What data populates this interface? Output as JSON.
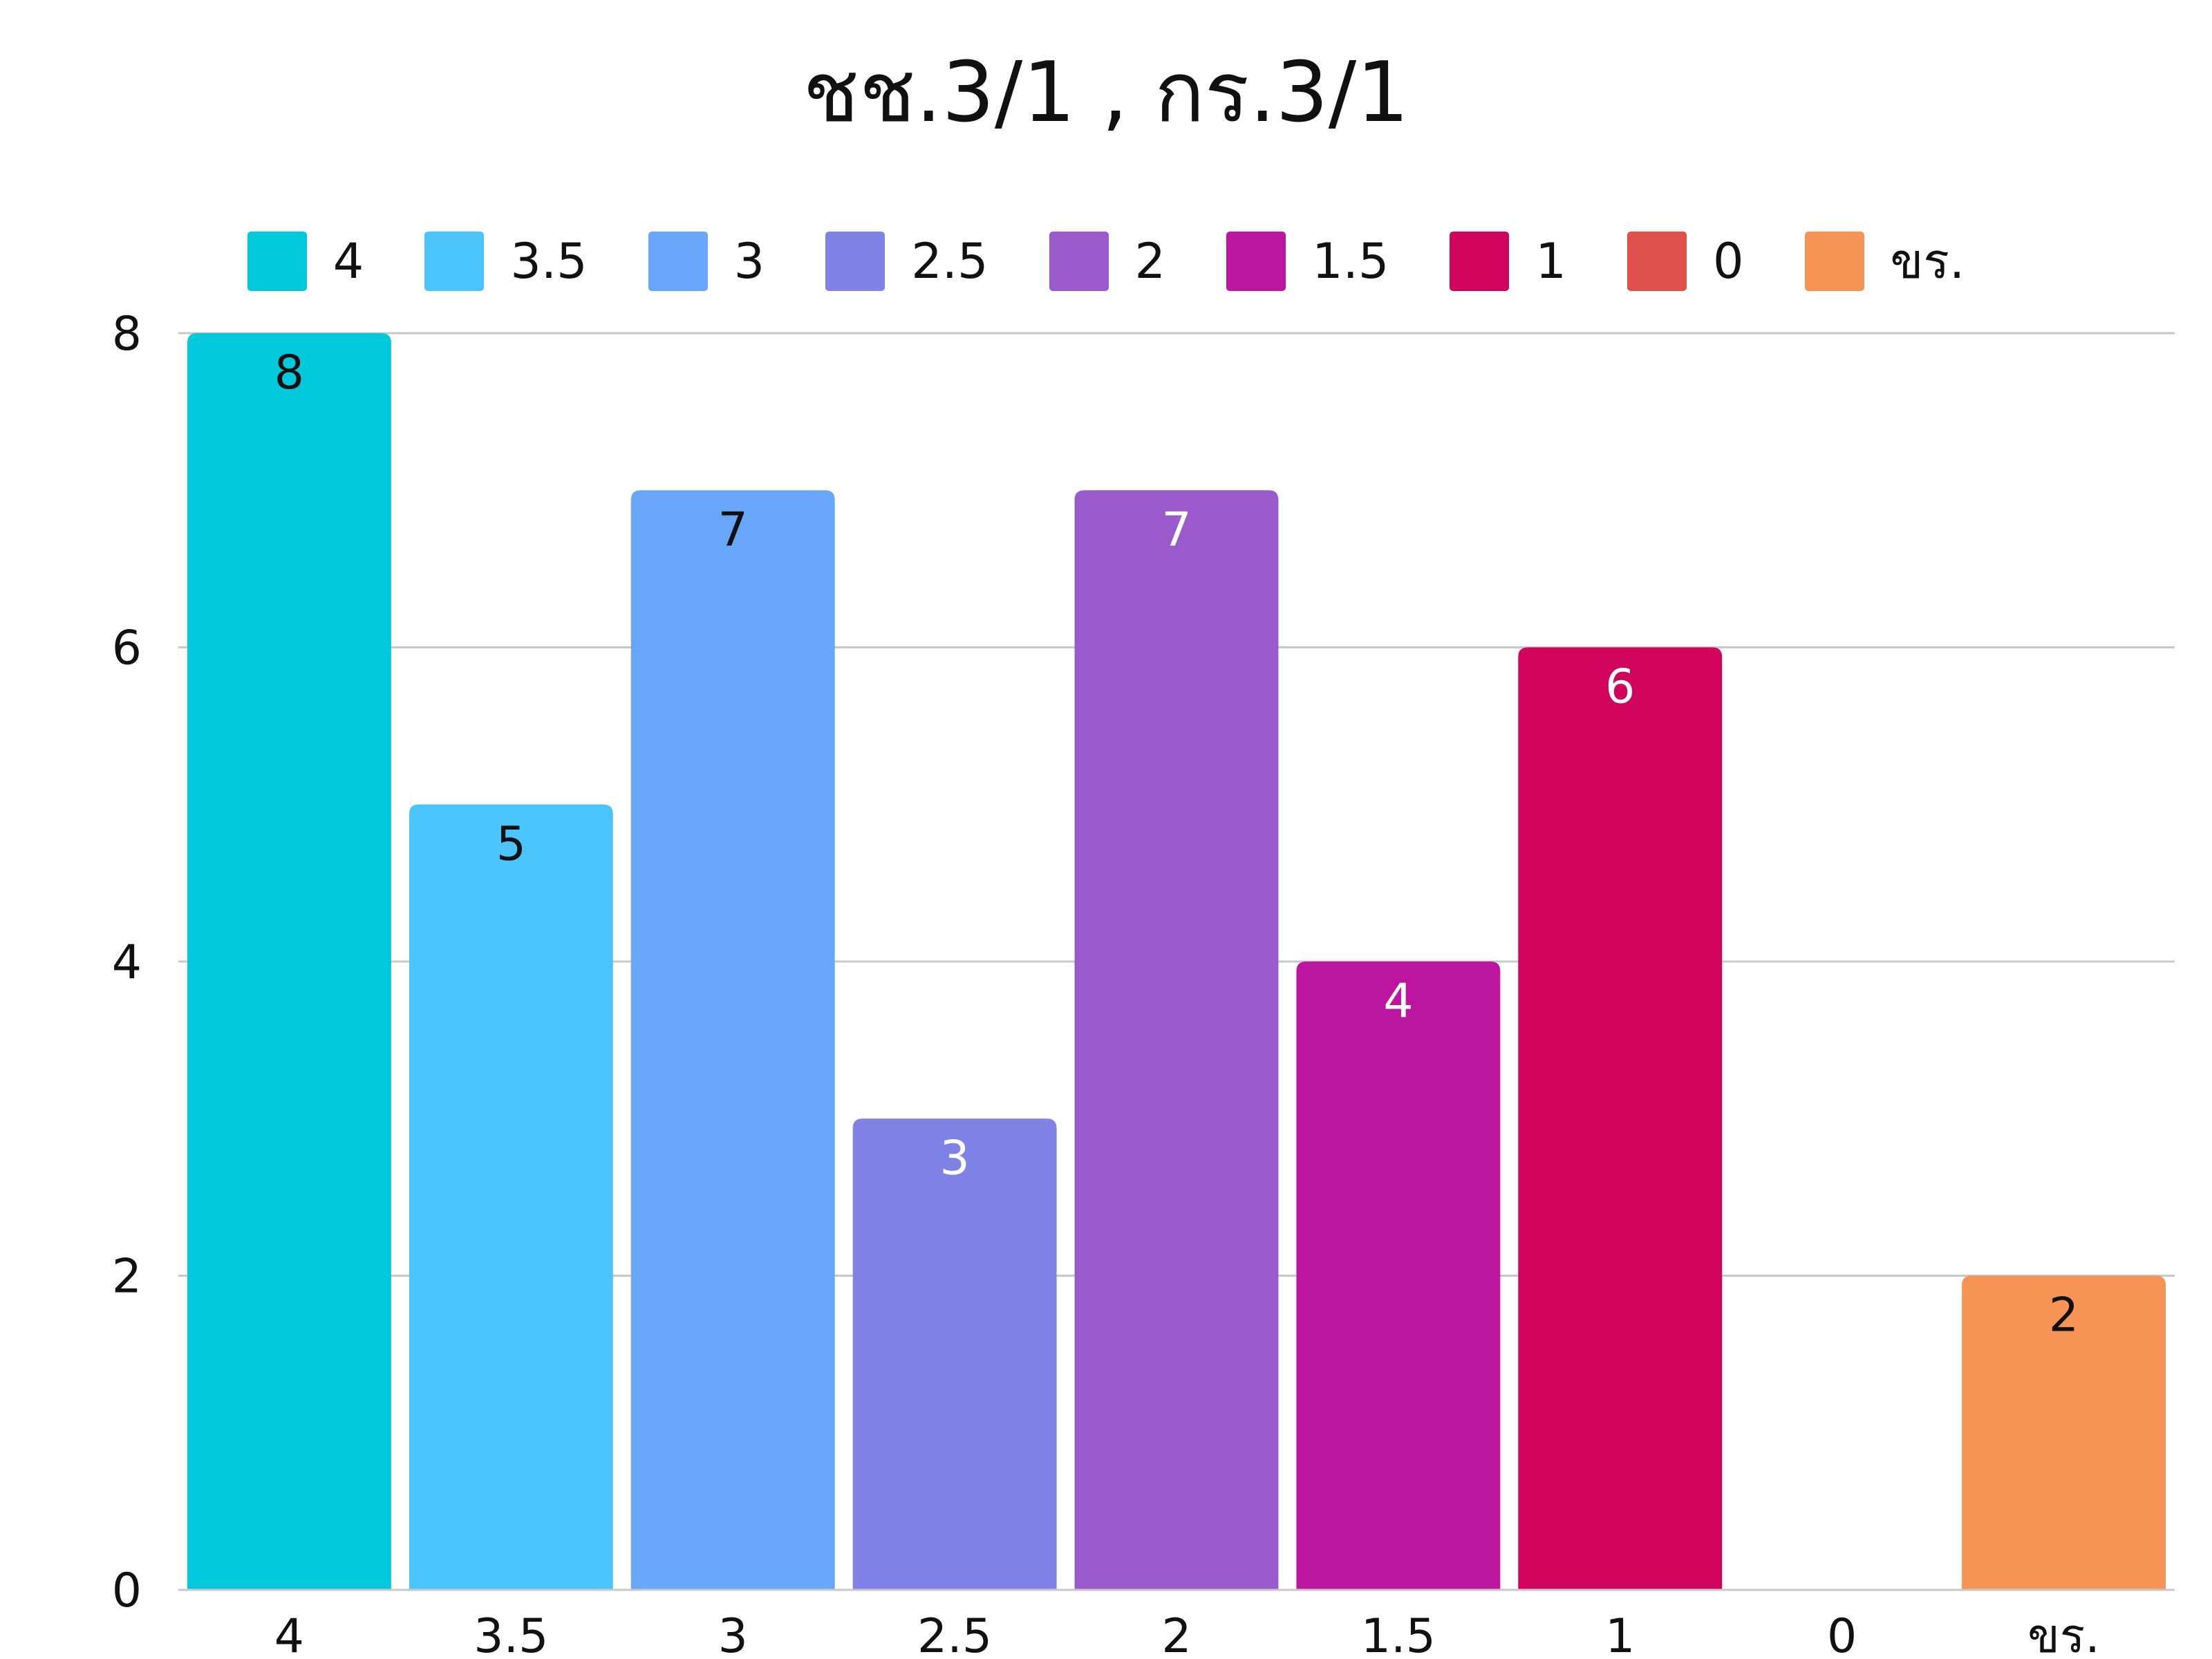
{
  "chart_data": {
    "type": "bar",
    "title": "ชช.3/1 , กร.3/1",
    "xlabel": "",
    "ylabel": "",
    "categories": [
      "4",
      "3.5",
      "3",
      "2.5",
      "2",
      "1.5",
      "1",
      "0",
      "ขร."
    ],
    "values": [
      8,
      5,
      7,
      3,
      7,
      4,
      6,
      0,
      2
    ],
    "colors": [
      "#00C9DB",
      "#4BC4FC",
      "#67A6F8",
      "#8182E6",
      "#9B5ACC",
      "#BC16A1",
      "#D0035D",
      "#DE5049",
      "#F79455"
    ],
    "value_label_colors": [
      "#111111",
      "#111111",
      "#111111",
      "#ffffff",
      "#ffffff",
      "#ffffff",
      "#ffffff",
      "#ffffff",
      "#111111"
    ],
    "ylim": [
      0,
      8
    ],
    "yticks": [
      0,
      2,
      4,
      6,
      8
    ],
    "grid": true,
    "legend": {
      "placement": "top",
      "entries": [
        "4",
        "3.5",
        "3",
        "2.5",
        "2",
        "1.5",
        "1",
        "0",
        "ขร."
      ]
    }
  }
}
